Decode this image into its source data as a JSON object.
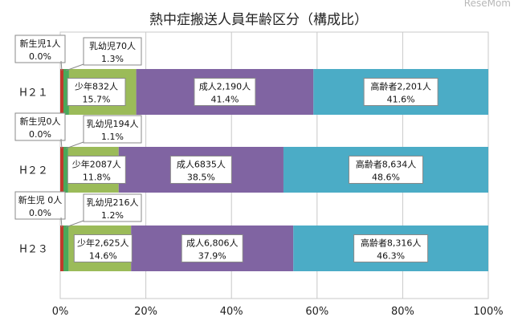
{
  "watermark": "ReseMom",
  "chart_data": {
    "type": "bar",
    "orientation": "horizontal",
    "stacked": "percent",
    "title": "熱中症搬送人員年齢区分（構成比）",
    "categories": [
      "H２１",
      "H２２",
      "H２３"
    ],
    "xlim": [
      0,
      100
    ],
    "xticks": [
      "0%",
      "20%",
      "40%",
      "60%",
      "80%",
      "100%"
    ],
    "grid": true,
    "series": [
      {
        "name": "新生児",
        "color": "#c0392b",
        "values": [
          0.0,
          0.0,
          0.0
        ],
        "labels": [
          {
            "line1": "新生児1人",
            "line2": "0.0%"
          },
          {
            "line1": "新生児0人",
            "line2": "0.0%"
          },
          {
            "line1": "新生児 0人",
            "line2": "0.0%"
          }
        ]
      },
      {
        "name": "乳幼児",
        "color": "#4aa85a",
        "values": [
          1.3,
          1.1,
          1.2
        ],
        "labels": [
          {
            "line1": "乳幼児70人",
            "line2": "1.3%"
          },
          {
            "line1": "乳幼児194人",
            "line2": "1.1%"
          },
          {
            "line1": "乳幼児216人",
            "line2": "1.2%"
          }
        ]
      },
      {
        "name": "少年",
        "color": "#9bbb59",
        "values": [
          15.7,
          11.8,
          14.6
        ],
        "labels": [
          {
            "line1": "少年832人",
            "line2": "15.7%"
          },
          {
            "line1": "少年2087人",
            "line2": "11.8%"
          },
          {
            "line1": "少年2,625人",
            "line2": "14.6%"
          }
        ]
      },
      {
        "name": "成人",
        "color": "#8064a2",
        "values": [
          41.4,
          38.5,
          37.9
        ],
        "labels": [
          {
            "line1": "成人2,190人",
            "line2": "41.4%"
          },
          {
            "line1": "成人6835人",
            "line2": "38.5%"
          },
          {
            "line1": "成人6,806人",
            "line2": "37.9%"
          }
        ]
      },
      {
        "name": "高齢者",
        "color": "#4bacc6",
        "values": [
          41.6,
          48.6,
          46.3
        ],
        "labels": [
          {
            "line1": "高齢者2,201人",
            "line2": "41.6%"
          },
          {
            "line1": "高齢者8,634人",
            "line2": "48.6%"
          },
          {
            "line1": "高齢者8,316人",
            "line2": "46.3%"
          }
        ]
      }
    ]
  }
}
